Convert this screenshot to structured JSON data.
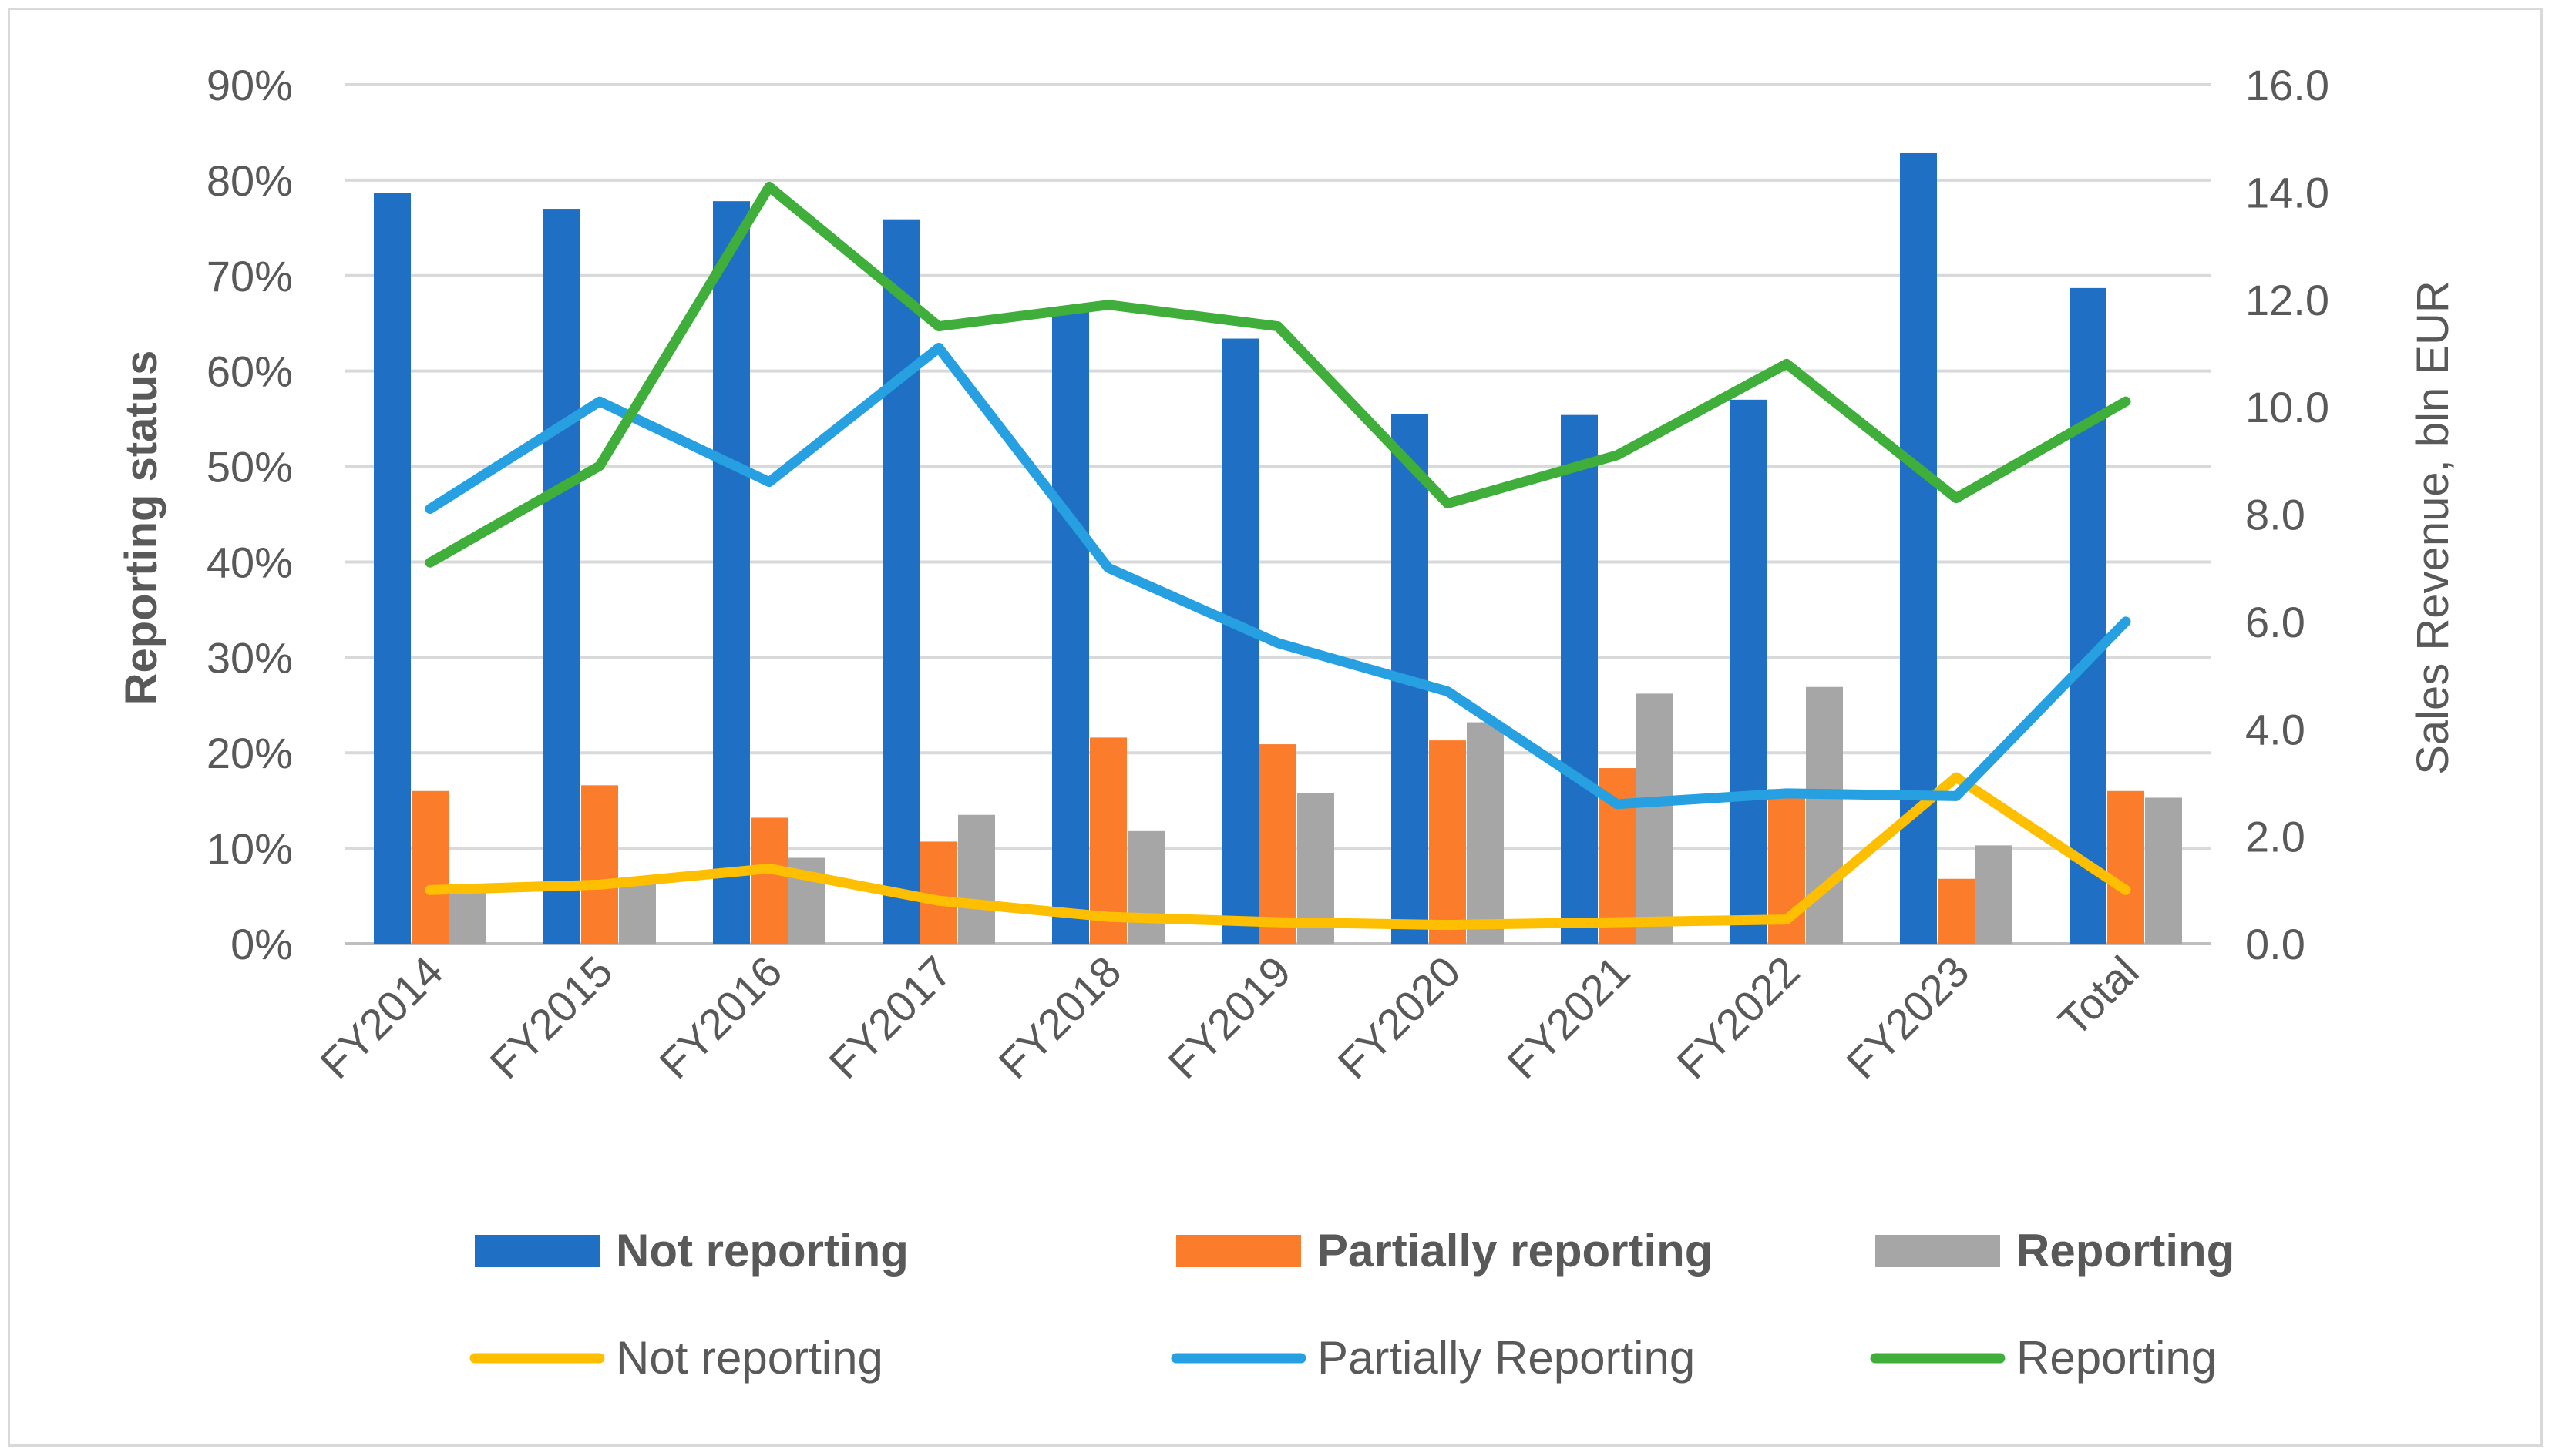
{
  "chart_data": {
    "type": "bar+line",
    "title": "",
    "categories": [
      "FY2014",
      "FY2015",
      "FY2016",
      "FY2017",
      "FY2018",
      "FY2019",
      "FY2020",
      "FY2021",
      "FY2022",
      "FY2023",
      "Total"
    ],
    "ylabel_left": "Reporting status",
    "ylabel_right": "Sales Revenue, bln EUR",
    "ylim_left": [
      0,
      0.9
    ],
    "ylim_right": [
      0,
      16
    ],
    "yticks_left": [
      "0%",
      "10%",
      "20%",
      "30%",
      "40%",
      "50%",
      "60%",
      "70%",
      "80%",
      "90%"
    ],
    "yticks_right": [
      "0.0",
      "2.0",
      "4.0",
      "6.0",
      "8.0",
      "10.0",
      "12.0",
      "14.0",
      "16.0"
    ],
    "grid": true,
    "legend_position": "bottom",
    "bar_series": [
      {
        "name": "Not reporting",
        "color": "#1f6fc5",
        "axis": "left",
        "values": [
          0.787,
          0.77,
          0.778,
          0.759,
          0.664,
          0.634,
          0.555,
          0.554,
          0.57,
          0.829,
          0.687
        ]
      },
      {
        "name": "Partially reporting",
        "color": "#fb7d2b",
        "axis": "left",
        "values": [
          0.16,
          0.166,
          0.132,
          0.107,
          0.216,
          0.209,
          0.213,
          0.184,
          0.162,
          0.068,
          0.16
        ]
      },
      {
        "name": "Reporting",
        "color": "#a6a6a6",
        "axis": "left",
        "values": [
          0.056,
          0.064,
          0.09,
          0.135,
          0.118,
          0.158,
          0.232,
          0.262,
          0.269,
          0.103,
          0.153
        ]
      }
    ],
    "line_series": [
      {
        "name": "Not reporting",
        "color": "#fdbf00",
        "axis": "right",
        "values": [
          1.0,
          1.1,
          1.4,
          0.8,
          0.5,
          0.4,
          0.35,
          0.4,
          0.45,
          3.1,
          1.0
        ]
      },
      {
        "name": "Partially Reporting",
        "color": "#26a0e0",
        "axis": "right",
        "values": [
          8.1,
          10.1,
          8.6,
          11.1,
          7.0,
          5.6,
          4.7,
          2.6,
          2.8,
          2.75,
          6.0
        ]
      },
      {
        "name": "Reporting",
        "color": "#3fae3a",
        "axis": "right",
        "values": [
          7.1,
          8.9,
          14.1,
          11.5,
          11.9,
          11.5,
          8.2,
          9.1,
          10.8,
          8.3,
          10.1
        ]
      }
    ]
  }
}
